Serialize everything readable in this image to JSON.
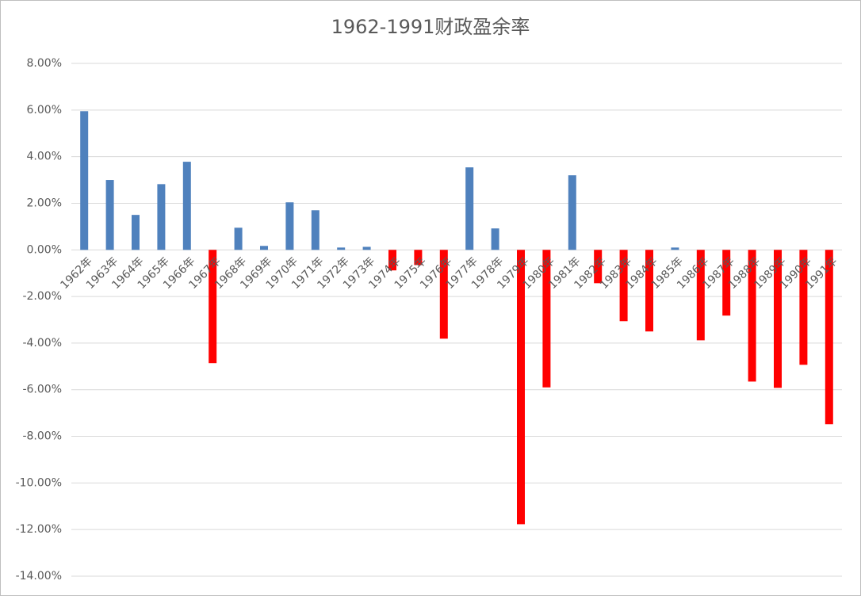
{
  "chart_data": {
    "type": "bar",
    "title": "1962-1991财政盈余率",
    "categories": [
      "1962年",
      "1963年",
      "1964年",
      "1965年",
      "1966年",
      "1967年",
      "1968年",
      "1969年",
      "1970年",
      "1971年",
      "1972年",
      "1973年",
      "1974年",
      "1975年",
      "1976年",
      "1977年",
      "1978年",
      "1979年",
      "1980年",
      "1981年",
      "1982年",
      "1983年",
      "1984年",
      "1985年",
      "1986年",
      "1987年",
      "1988年",
      "1989年",
      "1990年",
      "1991年"
    ],
    "values": [
      5.95,
      3.0,
      1.5,
      2.82,
      3.78,
      -4.86,
      0.95,
      0.17,
      2.04,
      1.7,
      0.1,
      0.13,
      -0.88,
      -0.65,
      -3.81,
      3.54,
      0.92,
      -11.77,
      -5.9,
      3.2,
      -1.43,
      -3.06,
      -3.5,
      0.1,
      -3.88,
      -2.82,
      -5.65,
      -5.92,
      -4.93,
      -7.48
    ],
    "color": "#4f81bd",
    "negative_color": "#ff0000",
    "ylim": [
      -14,
      8
    ],
    "yticks": [
      {
        "value": -14,
        "label": "-14.00%"
      },
      {
        "value": -12,
        "label": "-12.00%"
      },
      {
        "value": -10,
        "label": "-10.00%"
      },
      {
        "value": -8,
        "label": "-8.00%"
      },
      {
        "value": -6,
        "label": "-6.00%"
      },
      {
        "value": -4,
        "label": "-4.00%"
      },
      {
        "value": -2,
        "label": "-2.00%"
      },
      {
        "value": 0,
        "label": "0.00%"
      },
      {
        "value": 2,
        "label": "2.00%"
      },
      {
        "value": 4,
        "label": "4.00%"
      },
      {
        "value": 6,
        "label": "6.00%"
      },
      {
        "value": 8,
        "label": "8.00%"
      }
    ],
    "grid": true
  }
}
